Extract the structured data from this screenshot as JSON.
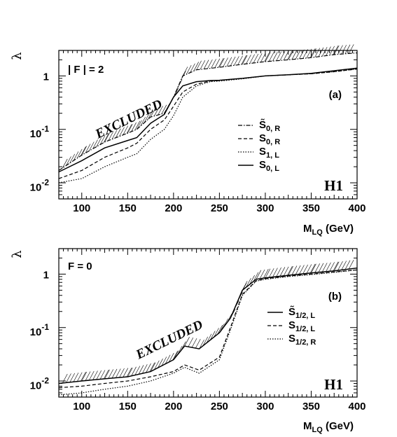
{
  "chart_data": [
    {
      "type": "line",
      "panel": "(a)",
      "ylabel": "λ",
      "xlabel": "M_LQ (GeV)",
      "xlabel_main": "M",
      "xlabel_sub": "LQ",
      "xlabel_unit": " (GeV)",
      "xlim": [
        75,
        400
      ],
      "ylim": [
        0.005,
        3.0
      ],
      "yscale": "log",
      "x_ticks": [
        "100",
        "150",
        "200",
        "250",
        "300",
        "350",
        "400"
      ],
      "y_ticks": [
        {
          "base": "10",
          "exp": "-2"
        },
        {
          "base": "10",
          "exp": "-1"
        },
        {
          "base": "1",
          "exp": ""
        }
      ],
      "annotation_text": "| F | = 2",
      "tag": "(a)",
      "excluded_label": "EXCLUDED",
      "logo": "H1",
      "series": [
        {
          "name": "S̃0, R",
          "base": "S̃",
          "sub": "0, R",
          "style": "dashdot",
          "x": [
            75,
            100,
            125,
            150,
            160,
            175,
            190,
            200,
            210,
            225,
            250,
            275,
            300,
            325,
            350,
            375,
            400
          ],
          "y": [
            0.017,
            0.033,
            0.058,
            0.085,
            0.1,
            0.17,
            0.2,
            0.4,
            1.0,
            1.3,
            1.45,
            1.65,
            1.85,
            2.0,
            2.2,
            2.5,
            2.7
          ]
        },
        {
          "name": "S0, R",
          "base": "S",
          "sub": "0, R",
          "style": "dashed",
          "x": [
            75,
            100,
            125,
            150,
            160,
            175,
            190,
            200,
            210,
            225,
            240,
            250,
            275,
            300,
            325,
            350,
            375,
            400
          ],
          "y": [
            0.012,
            0.017,
            0.03,
            0.045,
            0.055,
            0.1,
            0.15,
            0.27,
            0.5,
            0.7,
            0.8,
            0.82,
            0.9,
            1.0,
            1.05,
            1.1,
            1.2,
            1.35
          ]
        },
        {
          "name": "S1, L",
          "base": "S",
          "sub": "1, L",
          "style": "dotted",
          "x": [
            75,
            100,
            125,
            150,
            160,
            175,
            190,
            200,
            210,
            225,
            240,
            250,
            275,
            300,
            325,
            350,
            375,
            400
          ],
          "y": [
            0.01,
            0.012,
            0.02,
            0.03,
            0.035,
            0.065,
            0.1,
            0.18,
            0.4,
            0.65,
            0.78,
            0.8,
            0.88,
            1.0,
            1.05,
            1.1,
            1.2,
            1.35
          ]
        },
        {
          "name": "S0, L",
          "base": "S",
          "sub": "0, L",
          "style": "solid",
          "x": [
            75,
            100,
            125,
            150,
            160,
            175,
            190,
            200,
            210,
            225,
            240,
            250,
            275,
            300,
            325,
            350,
            375,
            400
          ],
          "y": [
            0.016,
            0.026,
            0.045,
            0.062,
            0.07,
            0.13,
            0.19,
            0.4,
            0.65,
            0.78,
            0.82,
            0.83,
            0.9,
            1.0,
            1.05,
            1.12,
            1.25,
            1.4
          ]
        }
      ]
    },
    {
      "type": "line",
      "panel": "(b)",
      "ylabel": "λ",
      "xlabel": "M_LQ (GeV)",
      "xlabel_main": "M",
      "xlabel_sub": "LQ",
      "xlabel_unit": " (GeV)",
      "xlim": [
        75,
        400
      ],
      "ylim": [
        0.005,
        3.0
      ],
      "yscale": "log",
      "x_ticks": [
        "100",
        "150",
        "200",
        "250",
        "300",
        "350",
        "400"
      ],
      "y_ticks": [
        {
          "base": "10",
          "exp": "-2"
        },
        {
          "base": "10",
          "exp": "-1"
        },
        {
          "base": "1",
          "exp": ""
        }
      ],
      "annotation_text": "F = 0",
      "tag": "(b)",
      "excluded_label": "EXCLUDED",
      "logo": "H1",
      "series": [
        {
          "name": "S̃1/2, L",
          "base": "S̃",
          "sub": "1/2, L",
          "style": "solid",
          "x": [
            75,
            100,
            125,
            150,
            175,
            200,
            212,
            228,
            250,
            262,
            275,
            290,
            300,
            325,
            350,
            375,
            400
          ],
          "y": [
            0.009,
            0.01,
            0.011,
            0.012,
            0.015,
            0.025,
            0.045,
            0.04,
            0.08,
            0.15,
            0.5,
            0.8,
            0.85,
            0.95,
            1.05,
            1.15,
            1.3
          ]
        },
        {
          "name": "S1/2, L",
          "base": "S",
          "sub": "1/2, L",
          "style": "dashed",
          "x": [
            75,
            100,
            125,
            150,
            175,
            200,
            212,
            228,
            250,
            262,
            275,
            290,
            300,
            325,
            350,
            375,
            400
          ],
          "y": [
            0.0075,
            0.008,
            0.009,
            0.01,
            0.012,
            0.015,
            0.02,
            0.016,
            0.028,
            0.1,
            0.42,
            0.75,
            0.82,
            0.92,
            1.0,
            1.1,
            1.2
          ]
        },
        {
          "name": "S1/2, R",
          "base": "S",
          "sub": "1/2, R",
          "style": "dotted",
          "x": [
            75,
            100,
            125,
            150,
            175,
            200,
            212,
            228,
            250,
            262,
            275,
            290,
            300,
            325,
            350,
            375,
            400
          ],
          "y": [
            0.0055,
            0.006,
            0.007,
            0.008,
            0.01,
            0.014,
            0.018,
            0.014,
            0.025,
            0.09,
            0.4,
            0.74,
            0.8,
            0.9,
            0.98,
            1.08,
            1.2
          ]
        }
      ]
    }
  ]
}
